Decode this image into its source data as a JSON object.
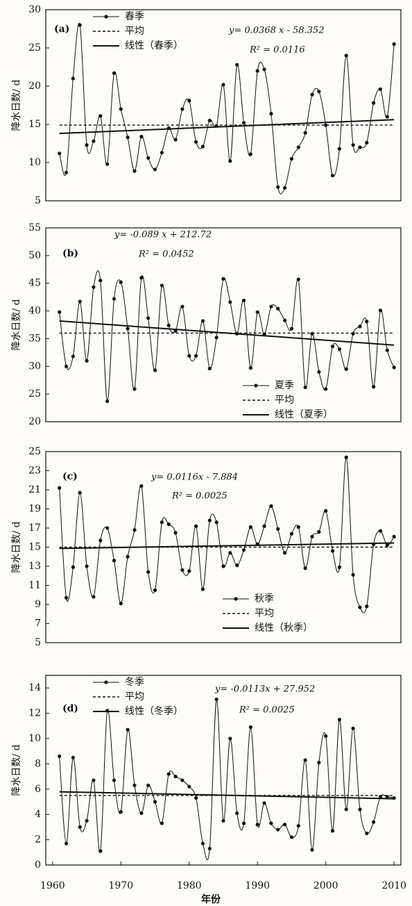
{
  "chart_data": [
    {
      "type": "line",
      "label": "(a)",
      "ylabel": "降水日数/ d",
      "x": [
        1961,
        1962,
        1963,
        1964,
        1965,
        1966,
        1967,
        1968,
        1969,
        1970,
        1971,
        1972,
        1973,
        1974,
        1975,
        1976,
        1977,
        1978,
        1979,
        1980,
        1981,
        1982,
        1983,
        1984,
        1985,
        1986,
        1987,
        1988,
        1989,
        1990,
        1991,
        1992,
        1993,
        1994,
        1995,
        1996,
        1997,
        1998,
        1999,
        2000,
        2001,
        2002,
        2003,
        2004,
        2005,
        2006,
        2007,
        2008,
        2009,
        2010
      ],
      "series": [
        {
          "name": "春季",
          "color": "#111111",
          "values": [
            11.2,
            8.7,
            21,
            28,
            12.3,
            12.8,
            16.1,
            9.8,
            21.7,
            17,
            13.3,
            8.9,
            13.4,
            10.6,
            9.1,
            11.3,
            14.5,
            13,
            17,
            18.1,
            12.7,
            12.1,
            15.5,
            14.8,
            20.2,
            10.2,
            22.8,
            15.2,
            11.1,
            22,
            22.2,
            16.4,
            6.8,
            6.7,
            10.5,
            12,
            13.9,
            18.9,
            19.3,
            14.9,
            8.3,
            11.8,
            24,
            12.3,
            12,
            12.6,
            17.8,
            19.6,
            16,
            25.5
          ]
        }
      ],
      "mean": {
        "name": "平均",
        "value": 14.9
      },
      "trend": {
        "name": "线性（春季）",
        "slope": 0.0368,
        "intercept": -58.352
      },
      "annotations": [
        "y= 0.0368 x - 58.352",
        "R² = 0.0116"
      ],
      "xlim": [
        1959,
        2011
      ],
      "ylim": [
        5,
        30
      ],
      "yticks": [
        5,
        10,
        15,
        20,
        25,
        30
      ],
      "legend": "upper left"
    },
    {
      "type": "line",
      "label": "(b)",
      "ylabel": "降水日数/ d",
      "x": [
        1961,
        1962,
        1963,
        1964,
        1965,
        1966,
        1967,
        1968,
        1969,
        1970,
        1971,
        1972,
        1973,
        1974,
        1975,
        1976,
        1977,
        1978,
        1979,
        1980,
        1981,
        1982,
        1983,
        1984,
        1985,
        1986,
        1987,
        1988,
        1989,
        1990,
        1991,
        1992,
        1993,
        1994,
        1995,
        1996,
        1997,
        1998,
        1999,
        2000,
        2001,
        2002,
        2003,
        2004,
        2005,
        2006,
        2007,
        2008,
        2009,
        2010
      ],
      "series": [
        {
          "name": "夏季",
          "color": "#111111",
          "values": [
            39.8,
            30,
            31.8,
            41.7,
            31,
            44.3,
            45.5,
            23.7,
            42.2,
            45.2,
            36.8,
            25.9,
            46,
            38.7,
            29.3,
            44.6,
            37.4,
            36.4,
            40.8,
            31.9,
            31.9,
            38.2,
            29.6,
            35.2,
            45.8,
            41.6,
            35.9,
            41.9,
            29.7,
            39.8,
            35.8,
            40.8,
            40.4,
            38.3,
            36.8,
            45.7,
            26.2,
            35.9,
            29,
            25.9,
            33.6,
            33.1,
            29.5,
            35.9,
            37.2,
            38.1,
            26.3,
            40.1,
            32.9,
            29.8
          ]
        }
      ],
      "mean": {
        "name": "平均",
        "value": 36
      },
      "trend": {
        "name": "线性（夏季）",
        "slope": -0.089,
        "intercept": 212.72
      },
      "annotations": [
        "y= -0.089 x + 212.72",
        "R² = 0.0452"
      ],
      "xlim": [
        1959,
        2011
      ],
      "ylim": [
        20,
        55
      ],
      "yticks": [
        20,
        25,
        30,
        35,
        40,
        45,
        50,
        55
      ],
      "legend": "lower right"
    },
    {
      "type": "line",
      "label": "(c)",
      "ylabel": "降水日数/ d",
      "x": [
        1961,
        1962,
        1963,
        1964,
        1965,
        1966,
        1967,
        1968,
        1969,
        1970,
        1971,
        1972,
        1973,
        1974,
        1975,
        1976,
        1977,
        1978,
        1979,
        1980,
        1981,
        1982,
        1983,
        1984,
        1985,
        1986,
        1987,
        1988,
        1989,
        1990,
        1991,
        1992,
        1993,
        1994,
        1995,
        1996,
        1997,
        1998,
        1999,
        2000,
        2001,
        2002,
        2003,
        2004,
        2005,
        2006,
        2007,
        2008,
        2009,
        2010
      ],
      "series": [
        {
          "name": "秋季",
          "color": "#111111",
          "values": [
            21.2,
            9.7,
            12.9,
            20.7,
            13,
            9.8,
            15.7,
            17,
            13.6,
            9.1,
            14,
            16.8,
            21.4,
            12.4,
            10.5,
            17.6,
            17.4,
            16.5,
            12.6,
            12.5,
            17.2,
            10.6,
            17.8,
            17.6,
            13,
            14.4,
            13.1,
            14.7,
            17.1,
            15.3,
            17.2,
            19.3,
            16.9,
            14.4,
            16.4,
            17.1,
            12.8,
            16.1,
            16.6,
            18.8,
            14.6,
            12.9,
            24.4,
            12.1,
            8.7,
            8.8,
            15.3,
            16.7,
            15.2,
            16.1
          ]
        }
      ],
      "mean": {
        "name": "平均",
        "value": 15
      },
      "trend": {
        "name": "线性（秋季）",
        "slope": 0.0116,
        "intercept": -7.884
      },
      "annotations": [
        "y= 0.0116x - 7.884",
        "R² = 0.0025"
      ],
      "xlim": [
        1959,
        2011
      ],
      "ylim": [
        5,
        25
      ],
      "yticks": [
        5,
        7,
        9,
        11,
        13,
        15,
        17,
        19,
        21,
        23,
        25
      ],
      "legend": "lower center"
    },
    {
      "type": "line",
      "label": "(d)",
      "ylabel": "降水日数/ d",
      "xlabel": "年份",
      "x": [
        1961,
        1962,
        1963,
        1964,
        1965,
        1966,
        1967,
        1968,
        1969,
        1970,
        1971,
        1972,
        1973,
        1974,
        1975,
        1976,
        1977,
        1978,
        1979,
        1980,
        1981,
        1982,
        1983,
        1984,
        1985,
        1986,
        1987,
        1988,
        1989,
        1990,
        1991,
        1992,
        1993,
        1994,
        1995,
        1996,
        1997,
        1998,
        1999,
        2000,
        2001,
        2002,
        2003,
        2004,
        2005,
        2006,
        2007,
        2008,
        2009,
        2010
      ],
      "series": [
        {
          "name": "冬季",
          "color": "#111111",
          "values": [
            8.6,
            1.7,
            8.5,
            3,
            3.5,
            6.7,
            1.1,
            12.2,
            6.7,
            4.2,
            10.7,
            6.3,
            4.1,
            6.3,
            5,
            3.3,
            7.2,
            7,
            6.7,
            6.2,
            5.3,
            1.7,
            1.3,
            13.1,
            3.5,
            10,
            4.1,
            3.3,
            10.9,
            3.2,
            4.9,
            3.3,
            2.8,
            3.2,
            2.2,
            3.1,
            8.3,
            1.2,
            8.1,
            10.2,
            2.7,
            11.5,
            4.4,
            10.8,
            4.4,
            2.5,
            3.4,
            5.4,
            5.4,
            5.3
          ]
        }
      ],
      "mean": {
        "name": "平均",
        "value": 5.5
      },
      "trend": {
        "name": "线性（冬季）",
        "slope": -0.0113,
        "intercept": 27.952
      },
      "annotations": [
        "y= -0.0113x + 27.952",
        "R² = 0.0025"
      ],
      "xlim": [
        1959,
        2011
      ],
      "xticks": [
        1960,
        1970,
        1980,
        1990,
        2000,
        2010
      ],
      "ylim": [
        0,
        15
      ],
      "yticks": [
        0,
        2,
        4,
        6,
        8,
        10,
        12,
        14
      ],
      "legend": "upper left"
    }
  ]
}
